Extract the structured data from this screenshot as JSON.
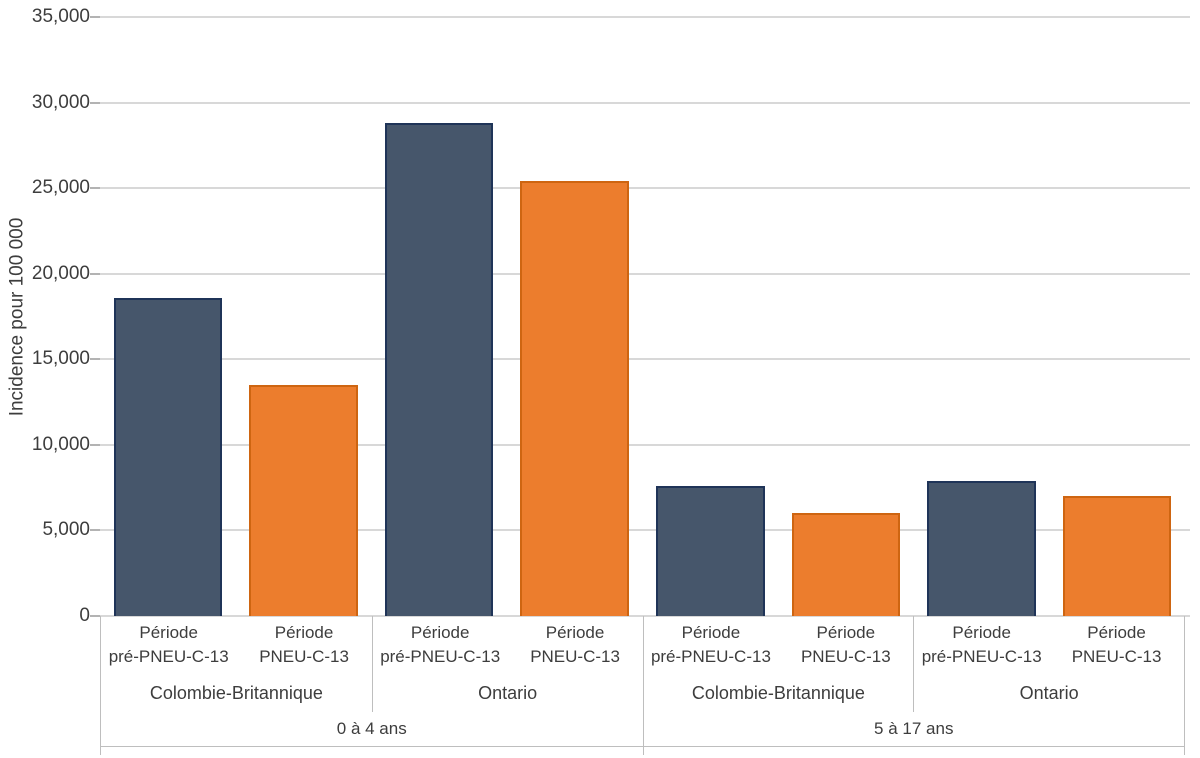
{
  "chart_data": {
    "type": "bar",
    "title": "",
    "ylabel": "Incidence pour 100 000",
    "ylim": [
      0,
      35000
    ],
    "ytick_step": 5000,
    "yticks": [
      "35,000",
      "30,000",
      "25,000",
      "20,000",
      "15,000",
      "10,000",
      "5,000",
      "0"
    ],
    "grid": "horizontal",
    "legend": "none",
    "series_colors": {
      "pre": "#46566B",
      "post": "#EC7D2D"
    },
    "series_border_colors": {
      "pre": "#1F3458",
      "post": "#CE6511"
    },
    "axis_colors": {
      "gridline": "#D8D8D8",
      "separator": "#BEBEBE",
      "text": "#3D3D3D"
    },
    "groups": [
      {
        "age_label": "0 à 4 ans",
        "provinces": [
          {
            "label": "Colombie-Britannique",
            "bars": [
              {
                "label": [
                  "Période",
                  "pré-PNEU-C-13"
                ],
                "series": "pre",
                "value": 18600
              },
              {
                "label": [
                  "Période",
                  "PNEU-C-13"
                ],
                "series": "post",
                "value": 13500
              }
            ]
          },
          {
            "label": "Ontario",
            "bars": [
              {
                "label": [
                  "Période",
                  "pré-PNEU-C-13"
                ],
                "series": "pre",
                "value": 28800
              },
              {
                "label": [
                  "Période",
                  "PNEU-C-13"
                ],
                "series": "post",
                "value": 25400
              }
            ]
          }
        ]
      },
      {
        "age_label": "5 à 17 ans",
        "provinces": [
          {
            "label": "Colombie-Britannique",
            "bars": [
              {
                "label": [
                  "Période",
                  "pré-PNEU-C-13"
                ],
                "series": "pre",
                "value": 7600
              },
              {
                "label": [
                  "Période",
                  "PNEU-C-13"
                ],
                "series": "post",
                "value": 6000
              }
            ]
          },
          {
            "label": "Ontario",
            "bars": [
              {
                "label": [
                  "Période",
                  "pré-PNEU-C-13"
                ],
                "series": "pre",
                "value": 7900
              },
              {
                "label": [
                  "Période",
                  "PNEU-C-13"
                ],
                "series": "post",
                "value": 7000
              }
            ]
          }
        ]
      }
    ]
  }
}
